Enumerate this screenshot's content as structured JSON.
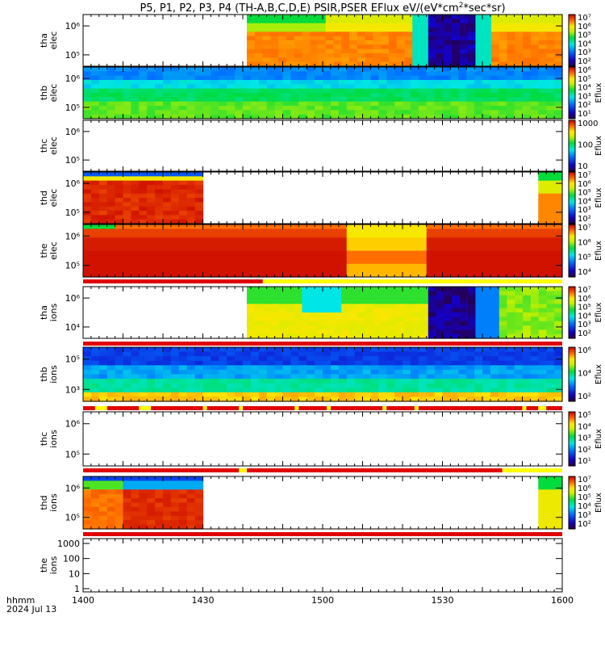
{
  "chart_data": {
    "type": "heatmap",
    "title": "P5, P1, P2, P3, P4 (TH-A,B,C,D,E) PSIR,PSER EFlux eV/(eV*cm",
    "title_sup": "2",
    "title_tail": "*sec*sr)",
    "x_ticks": [
      "1400",
      "1430",
      "1500",
      "1530",
      "1600"
    ],
    "x_range_minutes": [
      0,
      120
    ],
    "x_tick_minutes": [
      0,
      30,
      60,
      90,
      120
    ],
    "footer_label": "hhmm",
    "footer_date": "2024 Jul 13",
    "colorbar_label": "Eflux",
    "panels": [
      {
        "id": "tha_elec",
        "ylabel": [
          "tha",
          "elec"
        ],
        "yticks": [
          "10⁶",
          "10⁵"
        ],
        "colorbar_ticks": [
          "10⁷",
          "10⁶",
          "10⁵",
          "10⁴",
          "10³",
          "10²"
        ],
        "has_eflux_label": false
      },
      {
        "id": "thb_elec",
        "ylabel": [
          "thb",
          "elec"
        ],
        "yticks": [
          "10⁶",
          "10⁵"
        ],
        "colorbar_ticks": [
          "10⁶",
          "10⁵",
          "10⁴",
          "10³",
          "10²",
          "10¹"
        ],
        "has_eflux_label": true
      },
      {
        "id": "thc_elec",
        "ylabel": [
          "thc",
          "elec"
        ],
        "yticks": [
          "10⁶",
          "10⁵"
        ],
        "colorbar_ticks": [
          "1000",
          "100",
          "10"
        ],
        "has_eflux_label": true
      },
      {
        "id": "thd_elec",
        "ylabel": [
          "thd",
          "elec"
        ],
        "yticks": [
          "10⁶",
          "10⁵"
        ],
        "colorbar_ticks": [
          "10⁷",
          "10⁶",
          "10⁵",
          "10⁴",
          "10³",
          "10²"
        ],
        "has_eflux_label": true
      },
      {
        "id": "the_elec",
        "ylabel": [
          "the",
          "elec"
        ],
        "yticks": [
          "10⁶",
          "10⁵"
        ],
        "colorbar_ticks": [
          "10⁷",
          "10⁶",
          "10⁵",
          "10⁴"
        ],
        "has_eflux_label": true
      },
      {
        "id": "tha_ions",
        "ylabel": [
          "tha",
          "ions"
        ],
        "yticks": [
          "10⁶",
          "10⁴"
        ],
        "colorbar_ticks": [
          "10⁷",
          "10⁶",
          "10⁵",
          "10⁴",
          "10³",
          "10²"
        ],
        "has_eflux_label": true
      },
      {
        "id": "thb_ions",
        "ylabel": [
          "thb",
          "ions"
        ],
        "yticks": [
          "10⁵",
          "10³"
        ],
        "colorbar_ticks": [
          "10⁶",
          "10⁴",
          "10²"
        ],
        "has_eflux_label": true
      },
      {
        "id": "thc_ions",
        "ylabel": [
          "thc",
          "ions"
        ],
        "yticks": [
          "10⁶",
          "10⁵"
        ],
        "colorbar_ticks": [
          "10⁵",
          "10⁴",
          "10³",
          "10²",
          "10¹"
        ],
        "has_eflux_label": true
      },
      {
        "id": "thd_ions",
        "ylabel": [
          "thd",
          "ions"
        ],
        "yticks": [
          "10⁶",
          "10⁵"
        ],
        "colorbar_ticks": [
          "10⁷",
          "10⁶",
          "10⁵",
          "10⁴",
          "10³",
          "10²"
        ],
        "has_eflux_label": true
      },
      {
        "id": "the_ions",
        "ylabel": [
          "the",
          "ions"
        ],
        "yticks": [
          "1000",
          "100",
          "10",
          "1"
        ],
        "colorbar_ticks": [],
        "has_eflux_label": false
      }
    ],
    "data_coverage_minutes": {
      "tha_elec": [
        [
          41,
          120
        ]
      ],
      "thb_elec": [
        [
          0,
          120
        ]
      ],
      "thc_elec": [],
      "thd_elec": [
        [
          0,
          30
        ],
        [
          114,
          120
        ]
      ],
      "the_elec": [
        [
          0,
          120
        ]
      ],
      "tha_ions": [
        [
          41,
          120
        ]
      ],
      "thb_ions": [
        [
          0,
          120
        ]
      ],
      "thc_ions": [],
      "thd_ions": [
        [
          0,
          30
        ],
        [
          114,
          120
        ]
      ],
      "the_ions": []
    }
  }
}
